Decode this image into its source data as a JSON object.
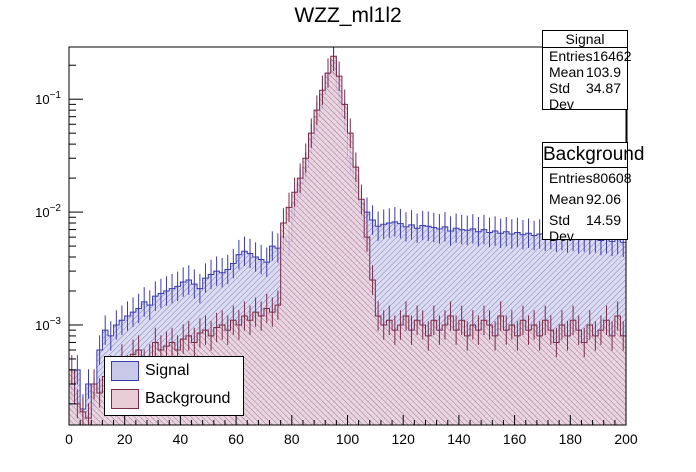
{
  "chart_data": {
    "type": "histogram",
    "title": "WZZ_ml1l2",
    "xlabel": "",
    "ylabel": "",
    "xlim": [
      0,
      200
    ],
    "ylim": [
      0.00013,
      0.29
    ],
    "yscale": "log",
    "bin_width": 2,
    "x_ticks": [
      0,
      20,
      40,
      60,
      80,
      100,
      120,
      140,
      160,
      180,
      200
    ],
    "x_tick_labels": [
      "0",
      "20",
      "40",
      "60",
      "80",
      "100",
      "120",
      "140",
      "160",
      "180",
      "200"
    ],
    "y_ticks": [
      0.001,
      0.01,
      0.1
    ],
    "y_tick_labels": [
      "10^-3",
      "10^-2",
      "10^-1"
    ],
    "series": [
      {
        "name": "Signal",
        "color": "#3a3ab0",
        "fill": "#c8c8e8",
        "values": [
          0.0003,
          0.0004,
          0.00018,
          0.0003,
          0.00025,
          0.0006,
          0.0009,
          0.0008,
          0.001,
          0.0011,
          0.0012,
          0.0013,
          0.0014,
          0.0016,
          0.0015,
          0.0018,
          0.0019,
          0.002,
          0.0021,
          0.0022,
          0.0024,
          0.0025,
          0.0023,
          0.0021,
          0.0026,
          0.0028,
          0.003,
          0.0029,
          0.0031,
          0.0035,
          0.0042,
          0.0045,
          0.0043,
          0.004,
          0.0038,
          0.0036,
          0.005,
          0.0048,
          0.006,
          0.0055,
          0.012,
          0.018,
          0.025,
          0.045,
          0.07,
          0.11,
          0.17,
          0.22,
          0.12,
          0.07,
          0.03,
          0.02,
          0.012,
          0.01,
          0.0085,
          0.0075,
          0.0078,
          0.008,
          0.0082,
          0.0079,
          0.0074,
          0.0077,
          0.0072,
          0.0076,
          0.0075,
          0.0073,
          0.0071,
          0.0074,
          0.0068,
          0.0072,
          0.007,
          0.0069,
          0.0071,
          0.0067,
          0.007,
          0.0066,
          0.0068,
          0.0065,
          0.0067,
          0.0064,
          0.0066,
          0.0063,
          0.0065,
          0.0062,
          0.0064,
          0.0061,
          0.0063,
          0.006,
          0.0062,
          0.0059,
          0.0061,
          0.0058,
          0.006,
          0.0057,
          0.0059,
          0.0056,
          0.0058,
          0.0055,
          0.0057,
          0.0054
        ],
        "stats": {
          "title": "Signal",
          "entries": "16462",
          "mean": "103.9",
          "std_dev": "34.87"
        }
      },
      {
        "name": "Background",
        "color": "#7a2a4a",
        "fill": "#e8cdd6",
        "values": [
          0.0004,
          0.0002,
          0.00017,
          0.00015,
          0.0003,
          0.00025,
          0.00035,
          0.0004,
          0.0003,
          0.0005,
          0.0004,
          0.00055,
          0.0006,
          0.00045,
          0.0005,
          0.0007,
          0.0006,
          0.00065,
          0.0007,
          0.0006,
          0.00075,
          0.0008,
          0.0007,
          0.00085,
          0.0009,
          0.0008,
          0.00095,
          0.001,
          0.0009,
          0.0011,
          0.001,
          0.0012,
          0.0011,
          0.0013,
          0.0012,
          0.0014,
          0.0013,
          0.0015,
          0.008,
          0.011,
          0.015,
          0.02,
          0.03,
          0.05,
          0.08,
          0.12,
          0.17,
          0.24,
          0.16,
          0.09,
          0.05,
          0.025,
          0.013,
          0.006,
          0.0025,
          0.0012,
          0.001,
          0.0011,
          0.0009,
          0.001,
          0.0012,
          0.0009,
          0.0011,
          0.001,
          0.0008,
          0.0011,
          0.0009,
          0.001,
          0.0012,
          0.0009,
          0.0011,
          0.0008,
          0.001,
          0.0009,
          0.0011,
          0.001,
          0.0008,
          0.0012,
          0.0009,
          0.001,
          0.0008,
          0.0011,
          0.0009,
          0.001,
          0.0008,
          0.0011,
          0.0009,
          0.0007,
          0.001,
          0.0008,
          0.0011,
          0.0009,
          0.0007,
          0.001,
          0.0008,
          0.0009,
          0.0011,
          0.0008,
          0.0012,
          0.0008
        ]
      }
    ],
    "stat_boxes": [
      {
        "title": "Signal",
        "entries": "16462",
        "mean": "103.9",
        "std_dev": "34.87"
      },
      {
        "title": "Background",
        "entries": "80608",
        "mean": "92.06",
        "std_dev": "14.59"
      }
    ],
    "stat_labels": {
      "entries": "Entries",
      "mean": "Mean",
      "std_dev": "Std Dev"
    },
    "legend": {
      "position": "bottom-left",
      "entries": [
        "Signal",
        "Background"
      ]
    }
  }
}
